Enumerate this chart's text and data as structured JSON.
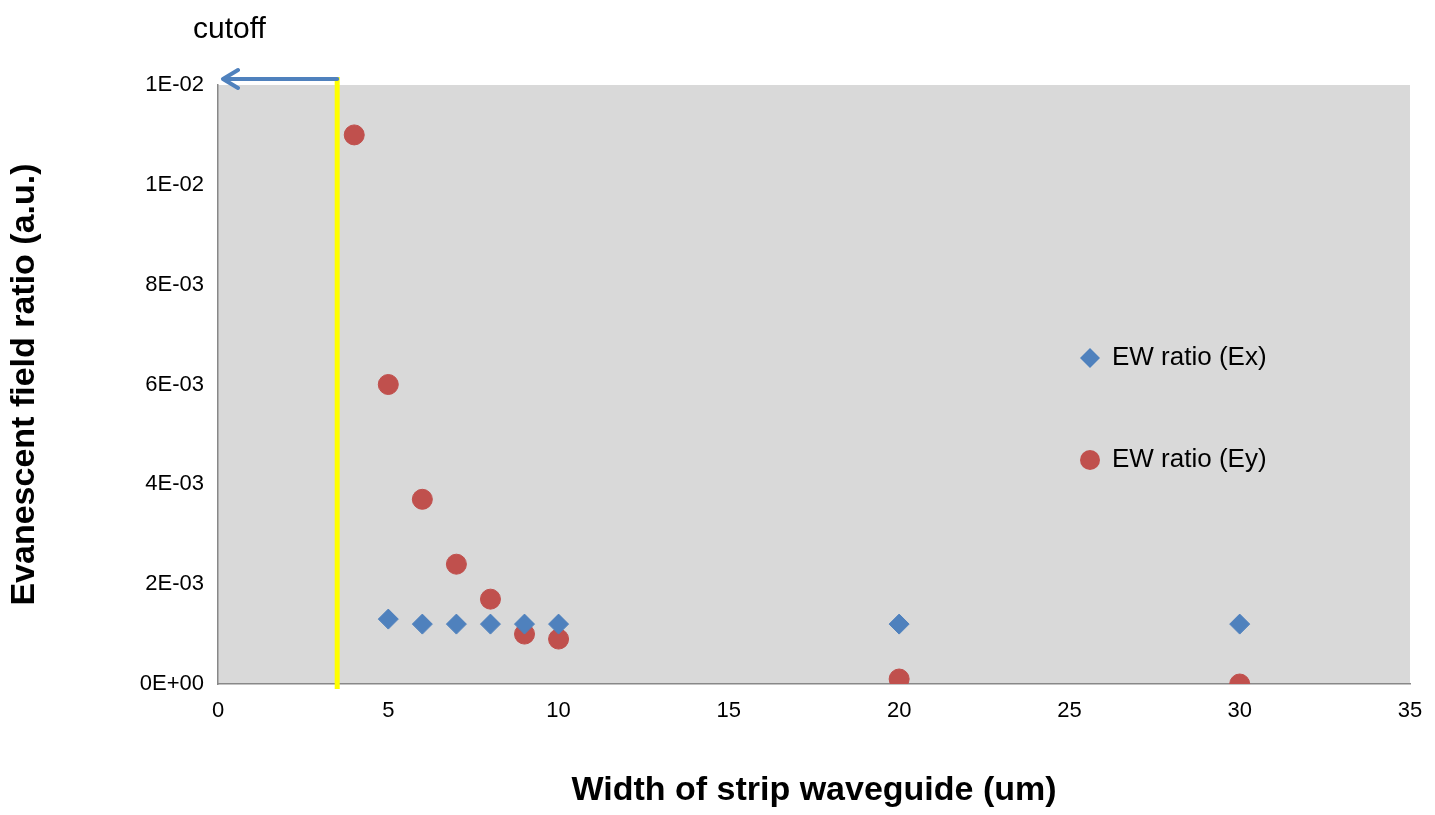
{
  "chart_data": {
    "type": "scatter",
    "xlabel": "Width of strip waveguide (um)",
    "ylabel": "Evanescent field ratio (a.u.)",
    "xlim": [
      0,
      35
    ],
    "xticks": [
      0,
      5,
      10,
      15,
      20,
      25,
      30,
      35
    ],
    "ylim": [
      0,
      0.012
    ],
    "yticks": [
      {
        "value": 0,
        "label": "0E+00"
      },
      {
        "value": 0.002,
        "label": "2E-03"
      },
      {
        "value": 0.004,
        "label": "4E-03"
      },
      {
        "value": 0.006,
        "label": "6E-03"
      },
      {
        "value": 0.008,
        "label": "8E-03"
      },
      {
        "value": 0.01,
        "label": "1E-02"
      },
      {
        "value": 0.012,
        "label": "1E-02"
      }
    ],
    "grid": false,
    "legend": "right",
    "series": [
      {
        "name": "EW ratio (Ex)",
        "color": "#4f81bd",
        "marker": "diamond",
        "x": [
          5,
          6,
          7,
          8,
          9,
          10,
          20,
          30
        ],
        "values": [
          0.0013,
          0.0012,
          0.0012,
          0.0012,
          0.0012,
          0.0012,
          0.0012,
          0.0012
        ]
      },
      {
        "name": "EW ratio (Ey)",
        "color": "#c0504d",
        "marker": "circle",
        "x": [
          4,
          5,
          6,
          7,
          8,
          9,
          10,
          20,
          30
        ],
        "values": [
          0.011,
          0.006,
          0.0037,
          0.0024,
          0.0017,
          0.001,
          0.0009,
          0.0001,
          0
        ]
      }
    ],
    "ref_lines": [
      {
        "axis": "x",
        "value": 3.5,
        "label": "cutoff",
        "color": "#ffff00"
      }
    ]
  }
}
